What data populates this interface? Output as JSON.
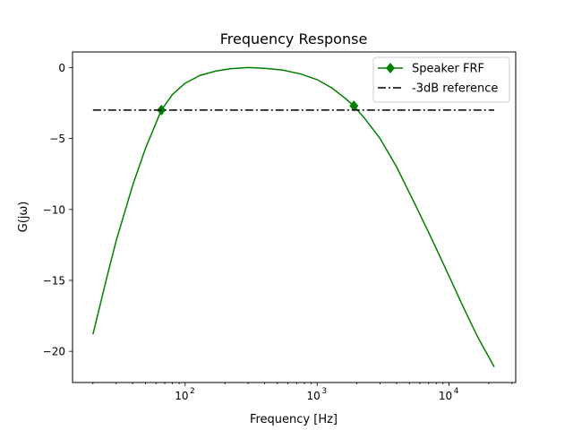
{
  "chart_data": {
    "type": "line",
    "title": "Frequency Response",
    "xlabel": "Frequency [Hz]",
    "ylabel": "G(jω)",
    "xscale": "log",
    "xlim": [
      14,
      32000
    ],
    "ylim": [
      -22.2,
      1.1
    ],
    "x_ticks_major": [
      100,
      1000,
      10000
    ],
    "x_tick_labels": [
      "10",
      "10",
      "10"
    ],
    "x_tick_exponents": [
      "2",
      "3",
      "4"
    ],
    "y_ticks": [
      0,
      -5,
      -10,
      -15,
      -20
    ],
    "y_tick_labels": [
      "0",
      "−5",
      "−10",
      "−15",
      "−20"
    ],
    "grid": false,
    "legend_position": "top-right",
    "series": [
      {
        "name": "Speaker FRF",
        "color": "#008000",
        "line_style": "solid",
        "marker": "diamond",
        "x": [
          20,
          25,
          30,
          40,
          50,
          66,
          80,
          100,
          130,
          170,
          220,
          300,
          400,
          550,
          750,
          1000,
          1300,
          1650,
          1900,
          2300,
          3000,
          4000,
          5500,
          7500,
          10000,
          13000,
          16500,
          20000,
          22000
        ],
        "y": [
          -18.8,
          -15.1,
          -12.2,
          -8.3,
          -5.7,
          -3.0,
          -1.9,
          -1.1,
          -0.55,
          -0.25,
          -0.08,
          0.0,
          -0.05,
          -0.18,
          -0.45,
          -0.85,
          -1.45,
          -2.2,
          -2.7,
          -3.6,
          -5.0,
          -7.0,
          -9.6,
          -12.2,
          -14.7,
          -17.0,
          -19.0,
          -20.4,
          -21.1
        ],
        "markers_x": [
          66,
          1900
        ],
        "markers_y": [
          -3.0,
          -2.7
        ]
      },
      {
        "name": "-3dB reference",
        "color": "#000000",
        "line_style": "dashdot",
        "x": [
          20,
          22000
        ],
        "y": [
          -3,
          -3
        ]
      }
    ]
  }
}
